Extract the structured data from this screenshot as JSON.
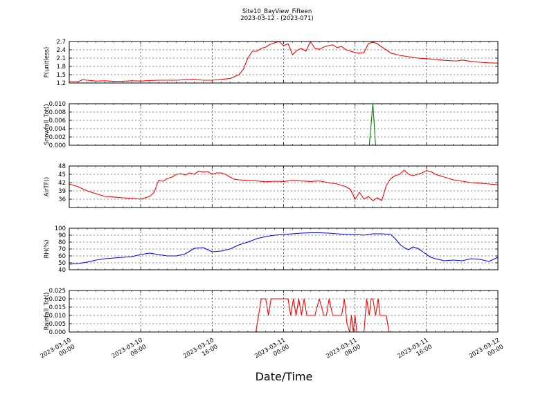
{
  "title": {
    "line1": "Site10_BayView_Fifteen",
    "line2": "2023-03-12 - (2023-071)"
  },
  "xlabel": "Date/Time",
  "x_ticks": [
    {
      "line1": "2023-03-10",
      "line2": "00:00"
    },
    {
      "line1": "2023-03-10",
      "line2": "08:00"
    },
    {
      "line1": "2023-03-10",
      "line2": "16:00"
    },
    {
      "line1": "2023-03-11",
      "line2": "00:00"
    },
    {
      "line1": "2023-03-11",
      "line2": "08:00"
    },
    {
      "line1": "2023-03-11",
      "line2": "16:00"
    },
    {
      "line1": "2023-03-12",
      "line2": "00:00"
    }
  ],
  "chart_data": [
    {
      "type": "line",
      "ylabel": "P(unitless)",
      "color": "#ff0000",
      "xlim": [
        0,
        48
      ],
      "ylim": [
        1.2,
        2.7
      ],
      "yticks": [
        "1.2",
        "1.5",
        "1.8",
        "2.1",
        "2.4",
        "2.7"
      ],
      "grid": true,
      "series": [
        {
          "x": [
            0,
            1,
            1.5,
            2,
            3,
            4,
            5,
            6,
            7,
            8,
            9,
            10,
            11,
            12,
            13,
            14,
            15,
            16,
            17,
            18,
            19,
            19.5,
            20,
            20.5,
            21,
            21.5,
            22,
            22.5,
            23,
            23.5,
            24,
            24.5,
            25,
            25.5,
            26,
            26.5,
            27,
            27.5,
            28,
            28.5,
            29,
            29.5,
            30,
            30.5,
            31,
            31.5,
            32,
            32.5,
            33,
            33.5,
            34,
            34.5,
            35,
            35.5,
            36,
            37,
            38,
            39,
            40,
            41,
            42,
            43,
            43.5,
            44,
            45,
            46,
            47,
            48
          ],
          "y": [
            1.25,
            1.25,
            1.32,
            1.3,
            1.27,
            1.28,
            1.26,
            1.26,
            1.28,
            1.27,
            1.29,
            1.3,
            1.3,
            1.3,
            1.32,
            1.33,
            1.3,
            1.3,
            1.33,
            1.36,
            1.5,
            1.7,
            2.1,
            2.35,
            2.35,
            2.45,
            2.5,
            2.6,
            2.65,
            2.7,
            2.55,
            2.62,
            2.22,
            2.38,
            2.45,
            2.35,
            2.7,
            2.45,
            2.42,
            2.5,
            2.55,
            2.58,
            2.48,
            2.52,
            2.4,
            2.35,
            2.3,
            2.28,
            2.3,
            2.62,
            2.68,
            2.62,
            2.5,
            2.4,
            2.28,
            2.2,
            2.15,
            2.1,
            2.08,
            2.05,
            2.02,
            2.0,
            2.0,
            2.03,
            1.98,
            1.95,
            1.93,
            1.92
          ]
        }
      ]
    },
    {
      "type": "line",
      "ylabel": "Snowfall_Tot()",
      "color": "#008000",
      "xlim": [
        0,
        48
      ],
      "ylim": [
        0,
        0.01
      ],
      "yticks": [
        "0.000",
        "0.002",
        "0.004",
        "0.006",
        "0.008",
        "0.010"
      ],
      "grid": true,
      "series": [
        {
          "x": [
            0,
            33.6,
            34.0,
            34.3,
            48
          ],
          "y": [
            0,
            0,
            0.01,
            0,
            0
          ]
        }
      ]
    },
    {
      "type": "line",
      "ylabel": "AirTF()",
      "color": "#ff0000",
      "xlim": [
        0,
        48
      ],
      "ylim": [
        33,
        48
      ],
      "yticks": [
        "36",
        "39",
        "42",
        "45",
        "48"
      ],
      "grid": true,
      "series": [
        {
          "x": [
            0,
            1,
            2,
            3,
            4,
            5,
            6,
            7,
            7.5,
            8,
            9,
            9.5,
            10,
            10.5,
            11,
            11.5,
            12,
            12.5,
            13,
            13.5,
            14,
            14.5,
            15,
            15.5,
            16,
            16.5,
            17,
            17.5,
            18,
            18.5,
            19,
            20,
            21,
            22,
            23,
            24,
            25,
            26,
            27,
            28,
            29,
            30,
            30.5,
            31,
            31.5,
            32,
            32.5,
            33,
            33.5,
            34,
            34.5,
            35,
            35.5,
            36,
            36.5,
            37,
            37.5,
            38,
            38.5,
            39,
            39.5,
            40,
            40.5,
            41,
            42,
            43,
            44,
            45,
            46,
            47,
            48
          ],
          "y": [
            41.5,
            40.5,
            39,
            38,
            37,
            36.8,
            36.5,
            36.3,
            36.2,
            36,
            37,
            38.5,
            42.8,
            42.5,
            43.5,
            44,
            45,
            45.2,
            44.8,
            45.5,
            45,
            46.2,
            45.8,
            46,
            45,
            45.5,
            45.5,
            45,
            44,
            43.2,
            43,
            42.8,
            42.6,
            42.3,
            42.5,
            42.4,
            42.8,
            42.6,
            42.4,
            42.6,
            42,
            41.5,
            41,
            40.5,
            39.5,
            36,
            38.5,
            36,
            37,
            35.5,
            36.5,
            35.5,
            41,
            43.5,
            44.5,
            45,
            46.5,
            45,
            44.5,
            45,
            45.5,
            46.3,
            46,
            45,
            44,
            43,
            42.5,
            42,
            41.8,
            41.5,
            41.2
          ]
        }
      ]
    },
    {
      "type": "line",
      "ylabel": "RH(%)",
      "color": "#0000ff",
      "xlim": [
        0,
        48
      ],
      "ylim": [
        40,
        100
      ],
      "yticks": [
        "40",
        "50",
        "60",
        "70",
        "80",
        "90",
        "100"
      ],
      "grid": true,
      "series": [
        {
          "x": [
            0,
            1,
            2,
            3,
            4,
            5,
            6,
            7,
            8,
            9,
            10,
            11,
            12,
            13,
            14,
            15,
            16,
            17,
            18,
            19,
            20,
            21,
            22,
            23,
            24,
            25,
            26,
            27,
            28,
            29,
            30,
            31,
            32,
            33,
            34,
            35,
            36,
            36.5,
            37,
            37.5,
            38,
            38.5,
            39,
            39.5,
            40,
            40.5,
            41,
            42,
            43,
            44,
            45,
            46,
            47,
            48
          ],
          "y": [
            48,
            49,
            51,
            54,
            56,
            57,
            58,
            59,
            62,
            64,
            62,
            60,
            60,
            63,
            71,
            72,
            66,
            67,
            70,
            76,
            80,
            85,
            88,
            90,
            91,
            92,
            93,
            93.5,
            93.5,
            93,
            92,
            91,
            91,
            90,
            92,
            92,
            91,
            85,
            77,
            72,
            69,
            73,
            71,
            67,
            62,
            58,
            56,
            53,
            54,
            53,
            56,
            55,
            52,
            58
          ]
        }
      ]
    },
    {
      "type": "line",
      "ylabel": "Rainfall_Tot()",
      "color": "#ff0000",
      "xlim": [
        0,
        48
      ],
      "ylim": [
        0,
        0.025
      ],
      "yticks": [
        "0.000",
        "0.005",
        "0.010",
        "0.015",
        "0.020",
        "0.025"
      ],
      "grid": true,
      "series": [
        {
          "x": [
            0,
            20.9,
            21.2,
            21.5,
            22,
            22.3,
            22.6,
            23,
            23.5,
            24,
            24.5,
            24.8,
            25.1,
            25.4,
            25.7,
            26,
            26.3,
            26.6,
            27,
            27.5,
            28,
            28.5,
            28.8,
            29.1,
            29.5,
            30,
            30.5,
            30.8,
            31.1,
            31.4,
            31.6,
            31.8,
            32,
            32.2,
            32.4,
            33,
            33.3,
            33.6,
            33.8,
            34,
            34.3,
            34.6,
            34.8,
            35,
            35.5,
            35.8,
            48
          ],
          "y": [
            0,
            0,
            0.01,
            0.02,
            0.02,
            0.01,
            0.02,
            0.02,
            0.02,
            0.02,
            0.02,
            0.01,
            0.02,
            0.01,
            0.02,
            0.01,
            0.02,
            0.01,
            0.01,
            0.01,
            0.02,
            0.01,
            0.01,
            0.02,
            0.01,
            0.01,
            0.01,
            0.02,
            0.005,
            0,
            0.01,
            0,
            0.01,
            0,
            0,
            0,
            0.02,
            0.01,
            0.02,
            0.02,
            0.01,
            0.02,
            0.01,
            0.01,
            0.01,
            0,
            0
          ]
        }
      ]
    }
  ]
}
